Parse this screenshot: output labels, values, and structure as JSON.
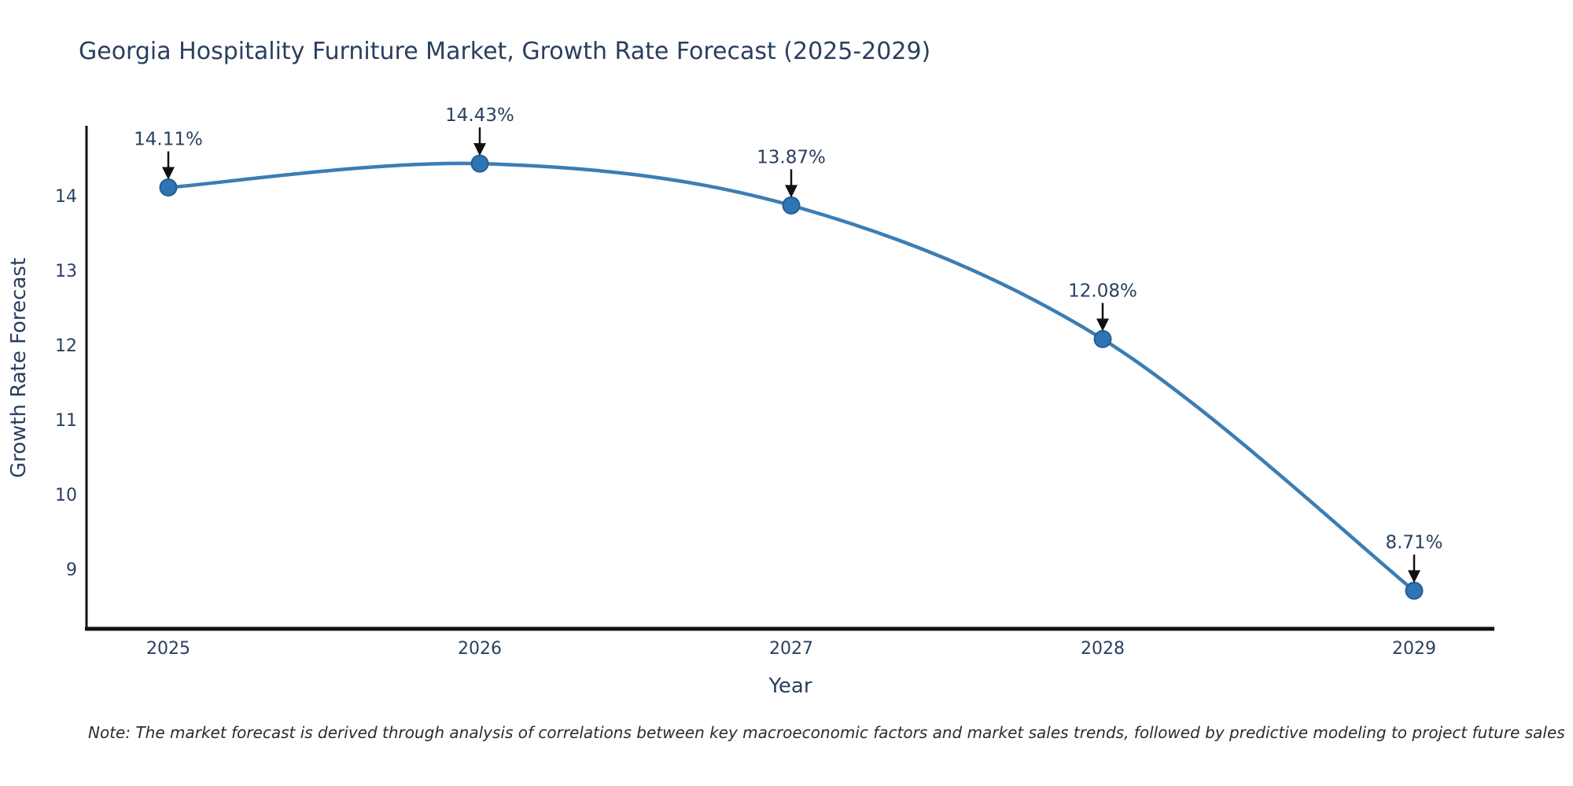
{
  "chart_data": {
    "type": "line",
    "line_shape": "spline",
    "title": "Georgia Hospitality Furniture Market, Growth Rate Forecast (2025-2029)",
    "xlabel": "Year",
    "ylabel": "Growth Rate Forecast",
    "categories": [
      "2025",
      "2026",
      "2027",
      "2028",
      "2029"
    ],
    "series": [
      {
        "name": "Growth Rate Forecast",
        "values": [
          14.11,
          14.43,
          13.87,
          12.08,
          8.71
        ],
        "point_labels": [
          "14.11%",
          "14.43%",
          "13.87%",
          "12.08%",
          "8.71%"
        ]
      }
    ],
    "y_ticks": [
      9,
      10,
      11,
      12,
      13,
      14
    ],
    "ylim": [
      8.2,
      14.95
    ],
    "grid": false,
    "legend_position": "none",
    "annotations_style": "value label with down arrow to each point",
    "colors": {
      "line": "#3C7DB4",
      "marker_fill": "#2E75B6",
      "marker_edge": "#275E94",
      "text": "#2a3f5f",
      "arrow": "#111111",
      "axis_line": "#111111",
      "background": "#ffffff"
    },
    "note": "Note: The market forecast is derived through analysis of correlations between key macroeconomic factors and market sales trends, followed by predictive modeling to project future sales"
  }
}
